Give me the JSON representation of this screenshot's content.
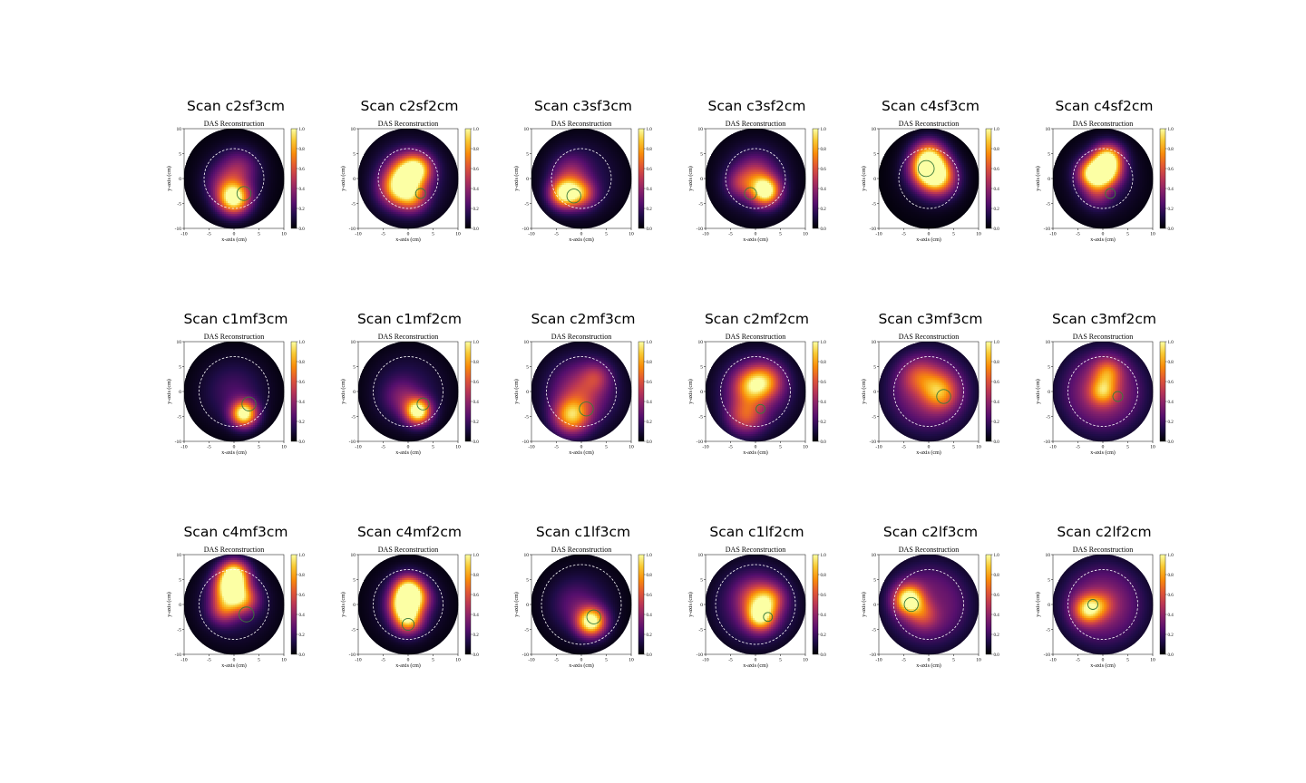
{
  "colors": {
    "colormap": "inferno",
    "ring": "#ffffff",
    "marker": "#3a7a3a",
    "background": "#ffffff"
  },
  "chart_data": [
    {
      "type": "heatmap",
      "title": "Scan c2sf3cm",
      "subtitle": "DAS Reconstruction",
      "xlabel": "x-axis (cm)",
      "ylabel": "y-axis (cm)",
      "xlim": [
        -10,
        10
      ],
      "ylim": [
        -10,
        10
      ],
      "xticks": [
        -10,
        -5,
        0,
        5,
        10
      ],
      "yticks": [
        -10,
        -5,
        0,
        5,
        10
      ],
      "colorbar": {
        "range": [
          0.0,
          1.0
        ],
        "ticks": [
          "0.0",
          "0.2",
          "0.4",
          "0.6",
          "0.8",
          "1.0"
        ]
      },
      "reference_circle_radius": 6,
      "base_intensity": 0.08,
      "marker": {
        "x": 2,
        "y": -3,
        "r": 1.4
      },
      "blobs": [
        {
          "x": 0,
          "y": -4,
          "r": 2.2,
          "v": 1.0
        },
        {
          "x": 1,
          "y": 2,
          "r": 2.5,
          "v": 0.3
        },
        {
          "x": -2,
          "y": -1,
          "r": 2.5,
          "v": 0.25
        }
      ]
    },
    {
      "type": "heatmap",
      "title": "Scan c2sf2cm",
      "subtitle": "DAS Reconstruction",
      "xlabel": "x-axis (cm)",
      "ylabel": "y-axis (cm)",
      "xlim": [
        -10,
        10
      ],
      "ylim": [
        -10,
        10
      ],
      "xticks": [
        -10,
        -5,
        0,
        5,
        10
      ],
      "yticks": [
        -10,
        -5,
        0,
        5,
        10
      ],
      "colorbar": {
        "range": [
          0.0,
          1.0
        ],
        "ticks": [
          "0.0",
          "0.2",
          "0.4",
          "0.6",
          "0.8",
          "1.0"
        ]
      },
      "reference_circle_radius": 6,
      "base_intensity": 0.15,
      "marker": {
        "x": 2.5,
        "y": -3,
        "r": 1.0
      },
      "blobs": [
        {
          "x": 0,
          "y": 1,
          "r": 2.5,
          "v": 0.75
        },
        {
          "x": -2,
          "y": -2,
          "r": 2.5,
          "v": 0.7
        },
        {
          "x": 2,
          "y": 2,
          "r": 2,
          "v": 0.5
        },
        {
          "x": 1,
          "y": -4,
          "r": 2,
          "v": 0.4
        }
      ]
    },
    {
      "type": "heatmap",
      "title": "Scan c3sf3cm",
      "subtitle": "DAS Reconstruction",
      "xlabel": "x-axis (cm)",
      "ylabel": "y-axis (cm)",
      "xlim": [
        -10,
        10
      ],
      "ylim": [
        -10,
        10
      ],
      "xticks": [
        -10,
        -5,
        0,
        5,
        10
      ],
      "yticks": [
        -10,
        -5,
        0,
        5,
        10
      ],
      "colorbar": {
        "range": [
          0.0,
          1.0
        ],
        "ticks": [
          "0.0",
          "0.2",
          "0.4",
          "0.6",
          "0.8",
          "1.0"
        ]
      },
      "reference_circle_radius": 6,
      "base_intensity": 0.12,
      "marker": {
        "x": -1.5,
        "y": -3.5,
        "r": 1.4
      },
      "blobs": [
        {
          "x": -3.5,
          "y": -3,
          "r": 2,
          "v": 0.9
        },
        {
          "x": 0,
          "y": -3,
          "r": 2,
          "v": 0.55
        },
        {
          "x": -2,
          "y": 1,
          "r": 2.5,
          "v": 0.3
        }
      ]
    },
    {
      "type": "heatmap",
      "title": "Scan c3sf2cm",
      "subtitle": "DAS Reconstruction",
      "xlabel": "x-axis (cm)",
      "ylabel": "y-axis (cm)",
      "xlim": [
        -10,
        10
      ],
      "ylim": [
        -10,
        10
      ],
      "xticks": [
        -10,
        -5,
        0,
        5,
        10
      ],
      "yticks": [
        -10,
        -5,
        0,
        5,
        10
      ],
      "colorbar": {
        "range": [
          0.0,
          1.0
        ],
        "ticks": [
          "0.0",
          "0.2",
          "0.4",
          "0.6",
          "0.8",
          "1.0"
        ]
      },
      "reference_circle_radius": 6,
      "base_intensity": 0.12,
      "marker": {
        "x": -1,
        "y": -3,
        "r": 1.2
      },
      "blobs": [
        {
          "x": 2,
          "y": -2.5,
          "r": 2,
          "v": 1.0
        },
        {
          "x": 0,
          "y": 1,
          "r": 2.5,
          "v": 0.35
        },
        {
          "x": -3,
          "y": -1,
          "r": 2,
          "v": 0.3
        }
      ]
    },
    {
      "type": "heatmap",
      "title": "Scan c4sf3cm",
      "subtitle": "DAS Reconstruction",
      "xlabel": "x-axis (cm)",
      "ylabel": "y-axis (cm)",
      "xlim": [
        -10,
        10
      ],
      "ylim": [
        -10,
        10
      ],
      "xticks": [
        -10,
        -5,
        0,
        5,
        10
      ],
      "yticks": [
        -10,
        -5,
        0,
        5,
        10
      ],
      "colorbar": {
        "range": [
          0.0,
          1.0
        ],
        "ticks": [
          "0.0",
          "0.2",
          "0.4",
          "0.6",
          "0.8",
          "1.0"
        ]
      },
      "reference_circle_radius": 6,
      "base_intensity": 0.06,
      "marker": {
        "x": -0.5,
        "y": 2,
        "r": 1.6
      },
      "blobs": [
        {
          "x": 0,
          "y": 2,
          "r": 2.5,
          "v": 1.0
        },
        {
          "x": 2,
          "y": 0,
          "r": 2.5,
          "v": 0.65
        },
        {
          "x": 0,
          "y": 5,
          "r": 2.2,
          "v": 0.45
        }
      ]
    },
    {
      "type": "heatmap",
      "title": "Scan c4sf2cm",
      "subtitle": "DAS Reconstruction",
      "xlabel": "x-axis (cm)",
      "ylabel": "y-axis (cm)",
      "xlim": [
        -10,
        10
      ],
      "ylim": [
        -10,
        10
      ],
      "xticks": [
        -10,
        -5,
        0,
        5,
        10
      ],
      "yticks": [
        -10,
        -5,
        0,
        5,
        10
      ],
      "colorbar": {
        "range": [
          0.0,
          1.0
        ],
        "ticks": [
          "0.0",
          "0.2",
          "0.4",
          "0.6",
          "0.8",
          "1.0"
        ]
      },
      "reference_circle_radius": 6,
      "base_intensity": 0.1,
      "marker": {
        "x": 1.5,
        "y": -3,
        "r": 1.0
      },
      "blobs": [
        {
          "x": -2,
          "y": 1,
          "r": 2,
          "v": 0.95
        },
        {
          "x": 1,
          "y": 4,
          "r": 2,
          "v": 0.9
        },
        {
          "x": 1,
          "y": 1,
          "r": 2,
          "v": 0.65
        },
        {
          "x": -1,
          "y": -3,
          "r": 2,
          "v": 0.3
        }
      ]
    },
    {
      "type": "heatmap",
      "title": "Scan c1mf3cm",
      "subtitle": "DAS Reconstruction",
      "xlabel": "x-axis (cm)",
      "ylabel": "y-axis (cm)",
      "xlim": [
        -10,
        10
      ],
      "ylim": [
        -10,
        10
      ],
      "xticks": [
        -10,
        -5,
        0,
        5,
        10
      ],
      "yticks": [
        -10,
        -5,
        0,
        5,
        10
      ],
      "colorbar": {
        "range": [
          0.0,
          1.0
        ],
        "ticks": [
          "0.0",
          "0.2",
          "0.4",
          "0.6",
          "0.8",
          "1.0"
        ]
      },
      "reference_circle_radius": 7,
      "base_intensity": 0.1,
      "marker": {
        "x": 3,
        "y": -2.5,
        "r": 1.4
      },
      "blobs": [
        {
          "x": 2,
          "y": -4.5,
          "r": 1.8,
          "v": 1.0
        },
        {
          "x": 0,
          "y": 0,
          "r": 3,
          "v": 0.12
        }
      ]
    },
    {
      "type": "heatmap",
      "title": "Scan c1mf2cm",
      "subtitle": "DAS Reconstruction",
      "xlabel": "x-axis (cm)",
      "ylabel": "y-axis (cm)",
      "xlim": [
        -10,
        10
      ],
      "ylim": [
        -10,
        10
      ],
      "xticks": [
        -10,
        -5,
        0,
        5,
        10
      ],
      "yticks": [
        -10,
        -5,
        0,
        5,
        10
      ],
      "colorbar": {
        "range": [
          0.0,
          1.0
        ],
        "ticks": [
          "0.0",
          "0.2",
          "0.4",
          "0.6",
          "0.8",
          "1.0"
        ]
      },
      "reference_circle_radius": 7,
      "base_intensity": 0.12,
      "marker": {
        "x": 3,
        "y": -2.5,
        "r": 1.2
      },
      "blobs": [
        {
          "x": 2,
          "y": -4,
          "r": 1.8,
          "v": 1.0
        },
        {
          "x": -1,
          "y": -1,
          "r": 2.5,
          "v": 0.25
        }
      ]
    },
    {
      "type": "heatmap",
      "title": "Scan c2mf3cm",
      "subtitle": "DAS Reconstruction",
      "xlabel": "x-axis (cm)",
      "ylabel": "y-axis (cm)",
      "xlim": [
        -10,
        10
      ],
      "ylim": [
        -10,
        10
      ],
      "xticks": [
        -10,
        -5,
        0,
        5,
        10
      ],
      "yticks": [
        -10,
        -5,
        0,
        5,
        10
      ],
      "colorbar": {
        "range": [
          0.0,
          1.0
        ],
        "ticks": [
          "0.0",
          "0.2",
          "0.4",
          "0.6",
          "0.8",
          "1.0"
        ]
      },
      "reference_circle_radius": 7,
      "base_intensity": 0.2,
      "marker": {
        "x": 1,
        "y": -3.5,
        "r": 1.4
      },
      "blobs": [
        {
          "x": -2,
          "y": -5,
          "r": 2.5,
          "v": 0.7
        },
        {
          "x": 0,
          "y": 0,
          "r": 3,
          "v": 0.3
        },
        {
          "x": 3,
          "y": 3,
          "r": 2,
          "v": 0.25
        }
      ]
    },
    {
      "type": "heatmap",
      "title": "Scan c2mf2cm",
      "subtitle": "DAS Reconstruction",
      "xlabel": "x-axis (cm)",
      "ylabel": "y-axis (cm)",
      "xlim": [
        -10,
        10
      ],
      "ylim": [
        -10,
        10
      ],
      "xticks": [
        -10,
        -5,
        0,
        5,
        10
      ],
      "yticks": [
        -10,
        -5,
        0,
        5,
        10
      ],
      "colorbar": {
        "range": [
          0.0,
          1.0
        ],
        "ticks": [
          "0.0",
          "0.2",
          "0.4",
          "0.6",
          "0.8",
          "1.0"
        ]
      },
      "reference_circle_radius": 7,
      "base_intensity": 0.2,
      "marker": {
        "x": 1,
        "y": -3.5,
        "r": 0.9
      },
      "blobs": [
        {
          "x": -1,
          "y": 1,
          "r": 2.5,
          "v": 0.55
        },
        {
          "x": 2,
          "y": 2,
          "r": 2.5,
          "v": 0.5
        },
        {
          "x": -2,
          "y": -5,
          "r": 2.5,
          "v": 0.45
        }
      ]
    },
    {
      "type": "heatmap",
      "title": "Scan c3mf3cm",
      "subtitle": "DAS Reconstruction",
      "xlabel": "x-axis (cm)",
      "ylabel": "y-axis (cm)",
      "xlim": [
        -10,
        10
      ],
      "ylim": [
        -10,
        10
      ],
      "xticks": [
        -10,
        -5,
        0,
        5,
        10
      ],
      "yticks": [
        -10,
        -5,
        0,
        5,
        10
      ],
      "colorbar": {
        "range": [
          0.0,
          1.0
        ],
        "ticks": [
          "0.0",
          "0.2",
          "0.4",
          "0.6",
          "0.8",
          "1.0"
        ]
      },
      "reference_circle_radius": 7,
      "base_intensity": 0.32,
      "marker": {
        "x": 3,
        "y": -1,
        "r": 1.4
      },
      "blobs": [
        {
          "x": 2,
          "y": 0,
          "r": 2.5,
          "v": 0.55
        },
        {
          "x": -2,
          "y": 3,
          "r": 2.5,
          "v": 0.3
        }
      ]
    },
    {
      "type": "heatmap",
      "title": "Scan c3mf2cm",
      "subtitle": "DAS Reconstruction",
      "xlabel": "x-axis (cm)",
      "ylabel": "y-axis (cm)",
      "xlim": [
        -10,
        10
      ],
      "ylim": [
        -10,
        10
      ],
      "xticks": [
        -10,
        -5,
        0,
        5,
        10
      ],
      "yticks": [
        -10,
        -5,
        0,
        5,
        10
      ],
      "colorbar": {
        "range": [
          0.0,
          1.0
        ],
        "ticks": [
          "0.0",
          "0.2",
          "0.4",
          "0.6",
          "0.8",
          "1.0"
        ]
      },
      "reference_circle_radius": 7,
      "base_intensity": 0.35,
      "marker": {
        "x": 3,
        "y": -1,
        "r": 1.0
      },
      "blobs": [
        {
          "x": 0,
          "y": 0,
          "r": 2,
          "v": 0.55
        },
        {
          "x": 1,
          "y": 4,
          "r": 2,
          "v": 0.4
        }
      ]
    },
    {
      "type": "heatmap",
      "title": "Scan c4mf3cm",
      "subtitle": "DAS Reconstruction",
      "xlabel": "x-axis (cm)",
      "ylabel": "y-axis (cm)",
      "xlim": [
        -10,
        10
      ],
      "ylim": [
        -10,
        10
      ],
      "xticks": [
        -10,
        -5,
        0,
        5,
        10
      ],
      "yticks": [
        -10,
        -5,
        0,
        5,
        10
      ],
      "colorbar": {
        "range": [
          0.0,
          1.0
        ],
        "ticks": [
          "0.0",
          "0.2",
          "0.4",
          "0.6",
          "0.8",
          "1.0"
        ]
      },
      "reference_circle_radius": 7,
      "base_intensity": 0.12,
      "marker": {
        "x": 2.5,
        "y": -2,
        "r": 1.5
      },
      "blobs": [
        {
          "x": 0,
          "y": 6,
          "r": 2,
          "v": 0.95
        },
        {
          "x": -1,
          "y": 3,
          "r": 2.2,
          "v": 0.8
        },
        {
          "x": 2,
          "y": 1,
          "r": 2,
          "v": 0.55
        },
        {
          "x": -2,
          "y": -1,
          "r": 2,
          "v": 0.45
        }
      ]
    },
    {
      "type": "heatmap",
      "title": "Scan c4mf2cm",
      "subtitle": "DAS Reconstruction",
      "xlabel": "x-axis (cm)",
      "ylabel": "y-axis (cm)",
      "xlim": [
        -10,
        10
      ],
      "ylim": [
        -10,
        10
      ],
      "xticks": [
        -10,
        -5,
        0,
        5,
        10
      ],
      "yticks": [
        -10,
        -5,
        0,
        5,
        10
      ],
      "colorbar": {
        "range": [
          0.0,
          1.0
        ],
        "ticks": [
          "0.0",
          "0.2",
          "0.4",
          "0.6",
          "0.8",
          "1.0"
        ]
      },
      "reference_circle_radius": 7,
      "base_intensity": 0.1,
      "marker": {
        "x": 0,
        "y": -4,
        "r": 1.2
      },
      "blobs": [
        {
          "x": 0,
          "y": 3,
          "r": 2,
          "v": 0.85
        },
        {
          "x": -1,
          "y": 0,
          "r": 2,
          "v": 0.8
        },
        {
          "x": 0,
          "y": -3,
          "r": 2,
          "v": 0.75
        },
        {
          "x": 2,
          "y": 1,
          "r": 2,
          "v": 0.45
        }
      ]
    },
    {
      "type": "heatmap",
      "title": "Scan c1lf3cm",
      "subtitle": "DAS Reconstruction",
      "xlabel": "x-axis (cm)",
      "ylabel": "y-axis (cm)",
      "xlim": [
        -10,
        10
      ],
      "ylim": [
        -10,
        10
      ],
      "xticks": [
        -10,
        -5,
        0,
        5,
        10
      ],
      "yticks": [
        -10,
        -5,
        0,
        5,
        10
      ],
      "colorbar": {
        "range": [
          0.0,
          1.0
        ],
        "ticks": [
          "0.0",
          "0.2",
          "0.4",
          "0.6",
          "0.8",
          "1.0"
        ]
      },
      "reference_circle_radius": 8,
      "base_intensity": 0.1,
      "marker": {
        "x": 2.5,
        "y": -2.5,
        "r": 1.4
      },
      "blobs": [
        {
          "x": 2,
          "y": -3.5,
          "r": 2,
          "v": 1.0
        },
        {
          "x": -1,
          "y": 0,
          "r": 3,
          "v": 0.18
        }
      ]
    },
    {
      "type": "heatmap",
      "title": "Scan c1lf2cm",
      "subtitle": "DAS Reconstruction",
      "xlabel": "x-axis (cm)",
      "ylabel": "y-axis (cm)",
      "xlim": [
        -10,
        10
      ],
      "ylim": [
        -10,
        10
      ],
      "xticks": [
        -10,
        -5,
        0,
        5,
        10
      ],
      "yticks": [
        -10,
        -5,
        0,
        5,
        10
      ],
      "colorbar": {
        "range": [
          0.0,
          1.0
        ],
        "ticks": [
          "0.0",
          "0.2",
          "0.4",
          "0.6",
          "0.8",
          "1.0"
        ]
      },
      "reference_circle_radius": 8,
      "base_intensity": 0.22,
      "marker": {
        "x": 2.5,
        "y": -2.5,
        "r": 0.9
      },
      "blobs": [
        {
          "x": 1,
          "y": -2.5,
          "r": 2,
          "v": 0.75
        },
        {
          "x": 0,
          "y": 1,
          "r": 2.5,
          "v": 0.45
        },
        {
          "x": 3,
          "y": 1,
          "r": 2,
          "v": 0.4
        }
      ]
    },
    {
      "type": "heatmap",
      "title": "Scan c2lf3cm",
      "subtitle": "DAS Reconstruction",
      "xlabel": "x-axis (cm)",
      "ylabel": "y-axis (cm)",
      "xlim": [
        -10,
        10
      ],
      "ylim": [
        -10,
        10
      ],
      "xticks": [
        -10,
        -5,
        0,
        5,
        10
      ],
      "yticks": [
        -10,
        -5,
        0,
        5,
        10
      ],
      "colorbar": {
        "range": [
          0.0,
          1.0
        ],
        "ticks": [
          "0.0",
          "0.2",
          "0.4",
          "0.6",
          "0.8",
          "1.0"
        ]
      },
      "reference_circle_radius": 7,
      "base_intensity": 0.3,
      "marker": {
        "x": -3.5,
        "y": 0,
        "r": 1.4
      },
      "blobs": [
        {
          "x": -4,
          "y": 1,
          "r": 2,
          "v": 0.9
        },
        {
          "x": -1,
          "y": -2,
          "r": 2,
          "v": 0.3
        }
      ]
    },
    {
      "type": "heatmap",
      "title": "Scan c2lf2cm",
      "subtitle": "DAS Reconstruction",
      "xlabel": "x-axis (cm)",
      "ylabel": "y-axis (cm)",
      "xlim": [
        -10,
        10
      ],
      "ylim": [
        -10,
        10
      ],
      "xticks": [
        -10,
        -5,
        0,
        5,
        10
      ],
      "yticks": [
        -10,
        -5,
        0,
        5,
        10
      ],
      "colorbar": {
        "range": [
          0.0,
          1.0
        ],
        "ticks": [
          "0.0",
          "0.2",
          "0.4",
          "0.6",
          "0.8",
          "1.0"
        ]
      },
      "reference_circle_radius": 7,
      "base_intensity": 0.32,
      "marker": {
        "x": -2,
        "y": 0,
        "r": 1.0
      },
      "blobs": [
        {
          "x": -3,
          "y": -1,
          "r": 2,
          "v": 0.65
        },
        {
          "x": 0,
          "y": 0,
          "r": 2,
          "v": 0.3
        }
      ]
    }
  ]
}
